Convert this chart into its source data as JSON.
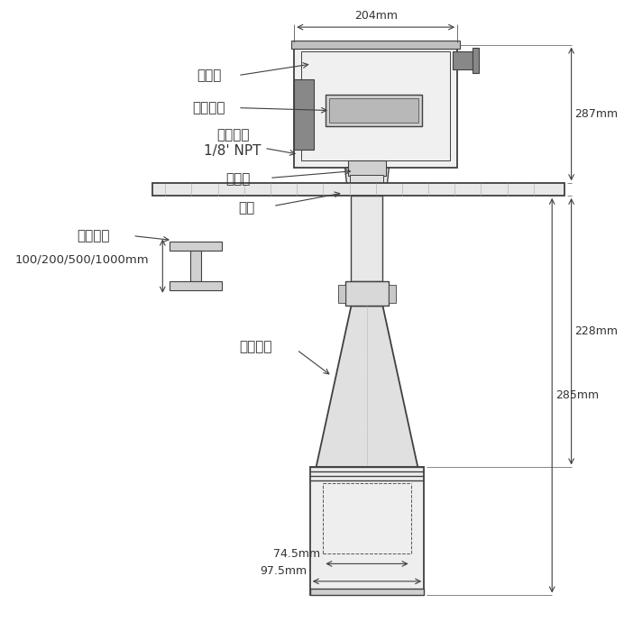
{
  "bg_color": "#ffffff",
  "line_color": "#404040",
  "text_color": "#333333",
  "labels": {
    "shell": "外壳盖",
    "display": "显示窗口",
    "purge": "吹扫入口\n1/8’ NPT",
    "sight": "矄准器",
    "flange": "法兰",
    "extension": "可延长段",
    "ext_len": "100/200/500/1000mm",
    "horn": "喉叭天线",
    "dim_204": "204mm",
    "dim_287": "287mm",
    "dim_228": "228mm",
    "dim_285": "285mm",
    "dim_74": "74.5mm",
    "dim_97": "97.5mm"
  },
  "figsize": [
    6.92,
    7.0
  ],
  "dpi": 100
}
